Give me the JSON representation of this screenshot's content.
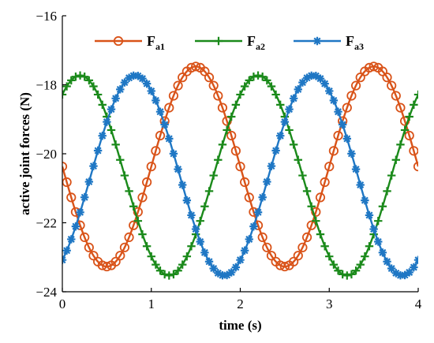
{
  "chart_data": {
    "type": "line",
    "title": "",
    "xlabel": "time (s)",
    "ylabel": "active joint forces (N)",
    "xlim": [
      0,
      4
    ],
    "ylim": [
      -24,
      -16
    ],
    "xticks": [
      0,
      1,
      2,
      3,
      4
    ],
    "yticks": [
      -24,
      -22,
      -20,
      -18,
      -16
    ],
    "grid": false,
    "legend_position": "top",
    "x": {
      "start": 0,
      "end": 4,
      "step": 0.05
    },
    "series": [
      {
        "name": "F",
        "subscript": "a1",
        "color": "#D95319",
        "marker": "circle",
        "mean": -20.37,
        "amplitude": 2.9,
        "period": 2.0,
        "peak_time": 1.5
      },
      {
        "name": "F",
        "subscript": "a2",
        "color": "#1B8A1B",
        "marker": "plus",
        "mean": -20.63,
        "amplitude": 2.9,
        "period": 2.0,
        "peak_time": 0.2
      },
      {
        "name": "F",
        "subscript": "a3",
        "color": "#1F77C4",
        "marker": "asterisk",
        "mean": -20.63,
        "amplitude": 2.9,
        "period": 2.0,
        "peak_time": 0.82
      }
    ]
  }
}
